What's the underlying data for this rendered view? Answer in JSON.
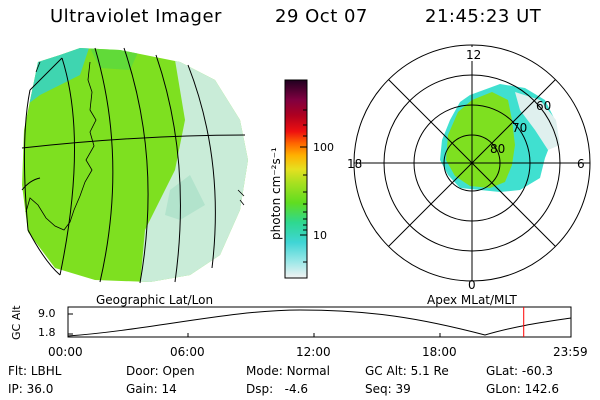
{
  "header": {
    "instrument": "Ultraviolet Imager",
    "date": "29 Oct 07",
    "time": "21:45:23 UT"
  },
  "colorbar": {
    "unit_label": "photon cm⁻²s⁻¹",
    "ticks": [
      "100",
      "10"
    ]
  },
  "geo_map": {
    "label": "Geographic Lat/Lon"
  },
  "polar_map": {
    "label": "Apex MLat/MLT",
    "mlt_labels": {
      "top": "12",
      "left": "18",
      "right": "6",
      "bottom": "0"
    },
    "lat_labels": [
      "60",
      "70",
      "80"
    ]
  },
  "altitude_plot": {
    "ylabel": "GC Alt",
    "y_ticks": [
      "9.0",
      "1.8"
    ],
    "x_ticks": [
      "00:00",
      "06:00",
      "12:00",
      "18:00",
      "23:59"
    ],
    "current_time_fraction": 0.906
  },
  "status": {
    "row1": [
      {
        "key": "Flt:",
        "value": "LBHL"
      },
      {
        "key": "Door:",
        "value": "Open"
      },
      {
        "key": "Mode:",
        "value": "Normal"
      },
      {
        "key": "GC Alt:",
        "value": "5.1 Re"
      },
      {
        "key": "GLat:",
        "value": "-60.3"
      }
    ],
    "row2": [
      {
        "key": "IP:",
        "value": "36.0"
      },
      {
        "key": "Gain:",
        "value": "14"
      },
      {
        "key": "Dsp:",
        "value": "-4.6"
      },
      {
        "key": "Seq:",
        "value": "39"
      },
      {
        "key": "GLon:",
        "value": "142.6"
      }
    ]
  },
  "colors": {
    "map_green": "#7ee020",
    "map_cyan": "#40e0d0",
    "map_pale": "#dff0ee",
    "alt_marker": "#ff0000"
  }
}
